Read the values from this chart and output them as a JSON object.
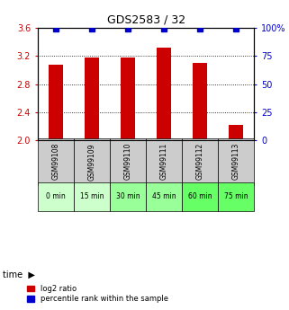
{
  "title": "GDS2583 / 32",
  "samples": [
    "GSM99108",
    "GSM99109",
    "GSM99110",
    "GSM99111",
    "GSM99112",
    "GSM99113"
  ],
  "time_labels": [
    "0 min",
    "15 min",
    "30 min",
    "45 min",
    "60 min",
    "75 min"
  ],
  "log2_ratio": [
    3.08,
    3.18,
    3.18,
    3.32,
    3.1,
    2.22
  ],
  "percentile_rank": [
    99,
    99,
    99,
    99,
    99,
    99
  ],
  "ylim_left": [
    2.0,
    3.6
  ],
  "ylim_right": [
    0,
    100
  ],
  "yticks_left": [
    2.0,
    2.4,
    2.8,
    3.2,
    3.6
  ],
  "yticks_right": [
    0,
    25,
    50,
    75,
    100
  ],
  "bar_color": "#cc0000",
  "dot_color": "#0000cc",
  "grid_color": "#000000",
  "bg_color": "#ffffff",
  "sample_bg_color": "#cccccc",
  "time_colors": [
    "#ccffcc",
    "#ccffcc",
    "#99ff99",
    "#99ff99",
    "#66ff66",
    "#66ff66"
  ],
  "left_label_color": "#cc0000",
  "right_label_color": "#0000cc",
  "bar_width": 0.4,
  "legend_red_label": "log2 ratio",
  "legend_blue_label": "percentile rank within the sample"
}
